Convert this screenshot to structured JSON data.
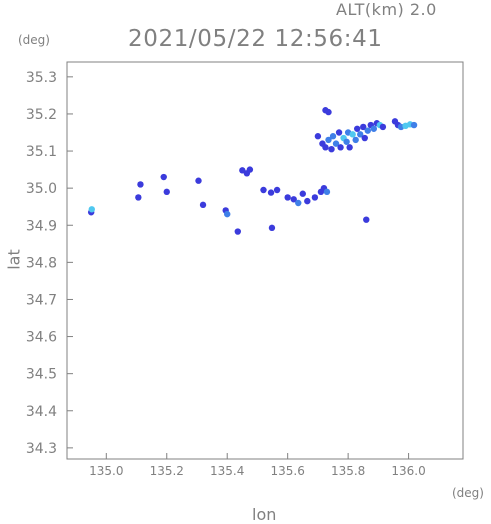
{
  "chart_data": {
    "type": "scatter",
    "alt_label": "ALT(km)  2.0",
    "timestamp": "2021/05/22 12:56:41",
    "xlabel": "lon",
    "ylabel": "lat",
    "x_unit": "(deg)",
    "y_unit": "(deg)",
    "xlim": [
      134.87,
      136.18
    ],
    "ylim": [
      34.27,
      35.34
    ],
    "x_ticks": [
      135.0,
      135.2,
      135.4,
      135.6,
      135.8,
      136.0
    ],
    "y_ticks": [
      34.3,
      34.4,
      34.5,
      34.6,
      34.7,
      34.8,
      34.9,
      35.0,
      35.1,
      35.2,
      35.3
    ],
    "x_tick_labels": [
      "135.0",
      "135.2",
      "135.4",
      "135.6",
      "135.8",
      "136.0"
    ],
    "y_tick_labels": [
      "34.3",
      "34.4",
      "34.5",
      "34.6",
      "34.7",
      "34.8",
      "34.9",
      "35.0",
      "35.1",
      "35.2",
      "35.3"
    ],
    "grid": false,
    "colors": {
      "frame": "#808080",
      "echo_low": "#3b3bdc",
      "echo_mid": "#3f7fe8",
      "echo_high": "#4fc8f0"
    },
    "points": [
      {
        "x": 134.95,
        "y": 34.935,
        "level": "low"
      },
      {
        "x": 134.952,
        "y": 34.943,
        "level": "high"
      },
      {
        "x": 135.113,
        "y": 35.01,
        "level": "low"
      },
      {
        "x": 135.106,
        "y": 34.975,
        "level": "low"
      },
      {
        "x": 135.19,
        "y": 35.03,
        "level": "low"
      },
      {
        "x": 135.2,
        "y": 34.99,
        "level": "low"
      },
      {
        "x": 135.305,
        "y": 35.02,
        "level": "low"
      },
      {
        "x": 135.32,
        "y": 34.955,
        "level": "low"
      },
      {
        "x": 135.395,
        "y": 34.94,
        "level": "low"
      },
      {
        "x": 135.4,
        "y": 34.93,
        "level": "mid"
      },
      {
        "x": 135.435,
        "y": 34.883,
        "level": "low"
      },
      {
        "x": 135.45,
        "y": 35.048,
        "level": "low"
      },
      {
        "x": 135.465,
        "y": 35.04,
        "level": "low"
      },
      {
        "x": 135.475,
        "y": 35.05,
        "level": "low"
      },
      {
        "x": 135.52,
        "y": 34.995,
        "level": "low"
      },
      {
        "x": 135.545,
        "y": 34.988,
        "level": "low"
      },
      {
        "x": 135.548,
        "y": 34.893,
        "level": "low"
      },
      {
        "x": 135.565,
        "y": 34.995,
        "level": "low"
      },
      {
        "x": 135.6,
        "y": 34.975,
        "level": "low"
      },
      {
        "x": 135.62,
        "y": 34.97,
        "level": "low"
      },
      {
        "x": 135.635,
        "y": 34.96,
        "level": "mid"
      },
      {
        "x": 135.65,
        "y": 34.985,
        "level": "low"
      },
      {
        "x": 135.665,
        "y": 34.965,
        "level": "low"
      },
      {
        "x": 135.69,
        "y": 34.975,
        "level": "low"
      },
      {
        "x": 135.71,
        "y": 34.99,
        "level": "low"
      },
      {
        "x": 135.72,
        "y": 35.0,
        "level": "low"
      },
      {
        "x": 135.73,
        "y": 34.99,
        "level": "mid"
      },
      {
        "x": 135.725,
        "y": 35.21,
        "level": "low"
      },
      {
        "x": 135.735,
        "y": 35.205,
        "level": "low"
      },
      {
        "x": 135.86,
        "y": 34.915,
        "level": "low"
      },
      {
        "x": 135.7,
        "y": 35.14,
        "level": "low"
      },
      {
        "x": 135.715,
        "y": 35.12,
        "level": "low"
      },
      {
        "x": 135.725,
        "y": 35.11,
        "level": "low"
      },
      {
        "x": 135.735,
        "y": 35.13,
        "level": "mid"
      },
      {
        "x": 135.745,
        "y": 35.105,
        "level": "low"
      },
      {
        "x": 135.75,
        "y": 35.14,
        "level": "mid"
      },
      {
        "x": 135.76,
        "y": 35.12,
        "level": "mid"
      },
      {
        "x": 135.77,
        "y": 35.15,
        "level": "low"
      },
      {
        "x": 135.775,
        "y": 35.11,
        "level": "low"
      },
      {
        "x": 135.785,
        "y": 35.135,
        "level": "high"
      },
      {
        "x": 135.795,
        "y": 35.125,
        "level": "mid"
      },
      {
        "x": 135.8,
        "y": 35.15,
        "level": "mid"
      },
      {
        "x": 135.805,
        "y": 35.11,
        "level": "low"
      },
      {
        "x": 135.815,
        "y": 35.145,
        "level": "high"
      },
      {
        "x": 135.825,
        "y": 35.13,
        "level": "mid"
      },
      {
        "x": 135.83,
        "y": 35.16,
        "level": "low"
      },
      {
        "x": 135.84,
        "y": 35.145,
        "level": "mid"
      },
      {
        "x": 135.85,
        "y": 35.165,
        "level": "low"
      },
      {
        "x": 135.855,
        "y": 35.135,
        "level": "low"
      },
      {
        "x": 135.865,
        "y": 35.155,
        "level": "mid"
      },
      {
        "x": 135.875,
        "y": 35.17,
        "level": "low"
      },
      {
        "x": 135.885,
        "y": 35.16,
        "level": "mid"
      },
      {
        "x": 135.895,
        "y": 35.175,
        "level": "low"
      },
      {
        "x": 135.905,
        "y": 35.17,
        "level": "high"
      },
      {
        "x": 135.915,
        "y": 35.165,
        "level": "low"
      },
      {
        "x": 135.955,
        "y": 35.18,
        "level": "low"
      },
      {
        "x": 135.965,
        "y": 35.17,
        "level": "low"
      },
      {
        "x": 135.975,
        "y": 35.165,
        "level": "mid"
      },
      {
        "x": 135.99,
        "y": 35.168,
        "level": "high"
      },
      {
        "x": 136.005,
        "y": 35.172,
        "level": "high"
      },
      {
        "x": 136.018,
        "y": 35.17,
        "level": "mid"
      }
    ]
  }
}
